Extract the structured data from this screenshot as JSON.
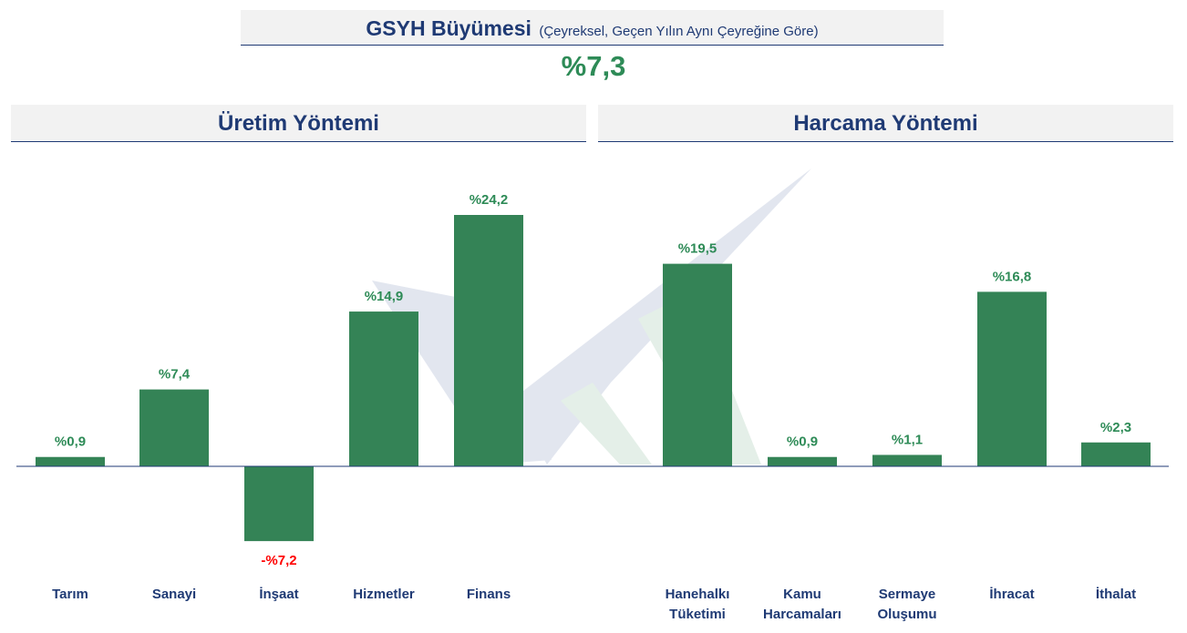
{
  "header": {
    "title": "GSYH Büyümesi",
    "subtitle": "(Çeyreksel, Geçen Yılın Aynı Çeyreğine Göre)",
    "headline_value": "%7,3"
  },
  "sections": {
    "left": "Üretim Yöntemi",
    "right": "Harcama Yöntemi"
  },
  "colors": {
    "bar": "#348356",
    "positive_label": "#2e8b57",
    "negative_label": "#ff0000",
    "category_label": "#1f3a74",
    "axis": "#1f3a74"
  },
  "chart_data": [
    {
      "type": "bar",
      "title": "Üretim Yöntemi",
      "categories": [
        [
          "Tarım"
        ],
        [
          "Sanayi"
        ],
        [
          "İnşaat"
        ],
        [
          "Hizmetler"
        ],
        [
          "Finans"
        ]
      ],
      "values": [
        0.9,
        7.4,
        -7.2,
        14.9,
        24.2
      ],
      "value_labels": [
        "%0,9",
        "%7,4",
        "-%7,2",
        "%14,9",
        "%24,2"
      ]
    },
    {
      "type": "bar",
      "title": "Harcama Yöntemi",
      "categories": [
        [
          "Hanehalkı",
          "Tüketimi"
        ],
        [
          "Kamu",
          "Harcamaları"
        ],
        [
          "Sermaye",
          "Oluşumu"
        ],
        [
          "İhracat"
        ],
        [
          "İthalat"
        ]
      ],
      "values": [
        19.5,
        0.9,
        1.1,
        16.8,
        2.3
      ],
      "value_labels": [
        "%19,5",
        "%0,9",
        "%1,1",
        "%16,8",
        "%2,3"
      ]
    }
  ]
}
